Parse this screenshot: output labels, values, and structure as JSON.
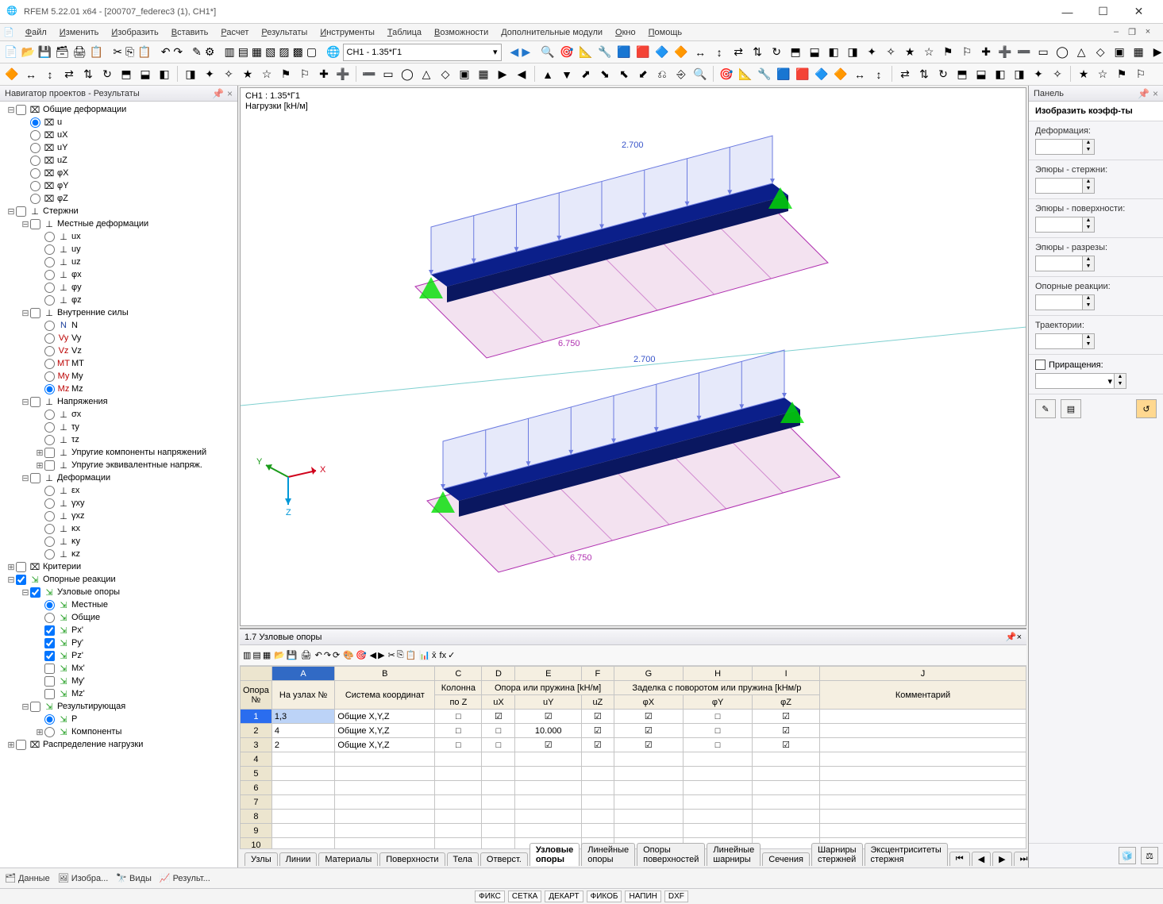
{
  "window": {
    "title": "RFEM 5.22.01 x64 - [200707_federec3 (1), CH1*]",
    "controls": {
      "min": "—",
      "max": "☐",
      "close": "✕"
    }
  },
  "menubar": [
    "Файл",
    "Изменить",
    "Изобразить",
    "Вставить",
    "Расчет",
    "Результаты",
    "Инструменты",
    "Таблица",
    "Возможности",
    "Дополнительные модули",
    "Окно",
    "Помощь"
  ],
  "load_case_selector": "CH1 - 1.35*Г1",
  "navigator": {
    "title": "Навигатор проектов - Результаты",
    "tree": [
      {
        "depth": 0,
        "tw": "−",
        "chk": false,
        "style": "chk",
        "ico": "⌧",
        "label": "Общие деформации"
      },
      {
        "depth": 1,
        "tw": "",
        "rad": true,
        "style": "rad",
        "ico": "⌧",
        "label": "u"
      },
      {
        "depth": 1,
        "tw": "",
        "rad": false,
        "style": "rad",
        "ico": "⌧",
        "label": "uX"
      },
      {
        "depth": 1,
        "tw": "",
        "rad": false,
        "style": "rad",
        "ico": "⌧",
        "label": "uY"
      },
      {
        "depth": 1,
        "tw": "",
        "rad": false,
        "style": "rad",
        "ico": "⌧",
        "label": "uZ"
      },
      {
        "depth": 1,
        "tw": "",
        "rad": false,
        "style": "rad",
        "ico": "⌧",
        "label": "φX"
      },
      {
        "depth": 1,
        "tw": "",
        "rad": false,
        "style": "rad",
        "ico": "⌧",
        "label": "φY"
      },
      {
        "depth": 1,
        "tw": "",
        "rad": false,
        "style": "rad",
        "ico": "⌧",
        "label": "φZ"
      },
      {
        "depth": 0,
        "tw": "−",
        "chk": false,
        "style": "chk",
        "ico": "⊥",
        "label": "Стержни"
      },
      {
        "depth": 1,
        "tw": "−",
        "chk": false,
        "style": "chk",
        "ico": "⊥",
        "label": "Местные деформации"
      },
      {
        "depth": 2,
        "tw": "",
        "rad": false,
        "style": "rad",
        "ico": "⊥",
        "label": "ux"
      },
      {
        "depth": 2,
        "tw": "",
        "rad": false,
        "style": "rad",
        "ico": "⊥",
        "label": "uy"
      },
      {
        "depth": 2,
        "tw": "",
        "rad": false,
        "style": "rad",
        "ico": "⊥",
        "label": "uz"
      },
      {
        "depth": 2,
        "tw": "",
        "rad": false,
        "style": "rad",
        "ico": "⊥",
        "label": "φx"
      },
      {
        "depth": 2,
        "tw": "",
        "rad": false,
        "style": "rad",
        "ico": "⊥",
        "label": "φy"
      },
      {
        "depth": 2,
        "tw": "",
        "rad": false,
        "style": "rad",
        "ico": "⊥",
        "label": "φz"
      },
      {
        "depth": 1,
        "tw": "−",
        "chk": false,
        "style": "chk",
        "ico": "⊥",
        "label": "Внутренние силы"
      },
      {
        "depth": 2,
        "tw": "",
        "rad": false,
        "style": "rad",
        "ico": "N",
        "label": "N",
        "icolor": "#1b3f9b"
      },
      {
        "depth": 2,
        "tw": "",
        "rad": false,
        "style": "rad",
        "ico": "Vy",
        "label": "Vy",
        "icolor": "#b00"
      },
      {
        "depth": 2,
        "tw": "",
        "rad": false,
        "style": "rad",
        "ico": "Vz",
        "label": "Vz",
        "icolor": "#b00"
      },
      {
        "depth": 2,
        "tw": "",
        "rad": false,
        "style": "rad",
        "ico": "MT",
        "label": "MT",
        "icolor": "#b00"
      },
      {
        "depth": 2,
        "tw": "",
        "rad": false,
        "style": "rad",
        "ico": "My",
        "label": "My",
        "icolor": "#b00"
      },
      {
        "depth": 2,
        "tw": "",
        "rad": true,
        "style": "rad",
        "ico": "Mz",
        "label": "Mz",
        "icolor": "#b00"
      },
      {
        "depth": 1,
        "tw": "−",
        "chk": false,
        "style": "chk",
        "ico": "⊥",
        "label": "Напряжения"
      },
      {
        "depth": 2,
        "tw": "",
        "rad": false,
        "style": "rad",
        "ico": "⊥",
        "label": "σx"
      },
      {
        "depth": 2,
        "tw": "",
        "rad": false,
        "style": "rad",
        "ico": "⊥",
        "label": "τy"
      },
      {
        "depth": 2,
        "tw": "",
        "rad": false,
        "style": "rad",
        "ico": "⊥",
        "label": "τz"
      },
      {
        "depth": 2,
        "tw": "+",
        "chk": false,
        "style": "chk",
        "ico": "⊥",
        "label": "Упругие компоненты напряжений"
      },
      {
        "depth": 2,
        "tw": "+",
        "chk": false,
        "style": "chk",
        "ico": "⊥",
        "label": "Упругие эквивалентные напряж."
      },
      {
        "depth": 1,
        "tw": "−",
        "chk": false,
        "style": "chk",
        "ico": "⊥",
        "label": "Деформации"
      },
      {
        "depth": 2,
        "tw": "",
        "rad": false,
        "style": "rad",
        "ico": "⊥",
        "label": "εx"
      },
      {
        "depth": 2,
        "tw": "",
        "rad": false,
        "style": "rad",
        "ico": "⊥",
        "label": "γxy"
      },
      {
        "depth": 2,
        "tw": "",
        "rad": false,
        "style": "rad",
        "ico": "⊥",
        "label": "γxz"
      },
      {
        "depth": 2,
        "tw": "",
        "rad": false,
        "style": "rad",
        "ico": "⊥",
        "label": "κx"
      },
      {
        "depth": 2,
        "tw": "",
        "rad": false,
        "style": "rad",
        "ico": "⊥",
        "label": "κy"
      },
      {
        "depth": 2,
        "tw": "",
        "rad": false,
        "style": "rad",
        "ico": "⊥",
        "label": "κz"
      },
      {
        "depth": 0,
        "tw": "+",
        "chk": false,
        "style": "chk",
        "ico": "⌧",
        "label": "Критерии"
      },
      {
        "depth": 0,
        "tw": "−",
        "chk": true,
        "style": "chk",
        "ico": "⇲",
        "label": "Опорные реакции",
        "icolor": "#1a9b1a"
      },
      {
        "depth": 1,
        "tw": "−",
        "chk": true,
        "style": "chk",
        "ico": "⇲",
        "label": "Узловые опоры",
        "icolor": "#1a9b1a"
      },
      {
        "depth": 2,
        "tw": "",
        "rad": true,
        "style": "rad",
        "ico": "⇲",
        "label": "Местные",
        "icolor": "#1a9b1a"
      },
      {
        "depth": 2,
        "tw": "",
        "rad": false,
        "style": "rad",
        "ico": "⇲",
        "label": "Общие",
        "icolor": "#1a9b1a"
      },
      {
        "depth": 2,
        "tw": "",
        "chk": true,
        "style": "chk",
        "ico": "⇲",
        "label": "Px'",
        "icolor": "#1a9b1a"
      },
      {
        "depth": 2,
        "tw": "",
        "chk": true,
        "style": "chk",
        "ico": "⇲",
        "label": "Py'",
        "icolor": "#1a9b1a"
      },
      {
        "depth": 2,
        "tw": "",
        "chk": true,
        "style": "chk",
        "ico": "⇲",
        "label": "Pz'",
        "icolor": "#1a9b1a"
      },
      {
        "depth": 2,
        "tw": "",
        "chk": false,
        "style": "chk",
        "ico": "⇲",
        "label": "Mx'",
        "icolor": "#1a9b1a"
      },
      {
        "depth": 2,
        "tw": "",
        "chk": false,
        "style": "chk",
        "ico": "⇲",
        "label": "My'",
        "icolor": "#1a9b1a"
      },
      {
        "depth": 2,
        "tw": "",
        "chk": false,
        "style": "chk",
        "ico": "⇲",
        "label": "Mz'",
        "icolor": "#1a9b1a"
      },
      {
        "depth": 1,
        "tw": "−",
        "chk": false,
        "style": "chk",
        "ico": "⇲",
        "label": "Результирующая",
        "icolor": "#1a9b1a"
      },
      {
        "depth": 2,
        "tw": "",
        "rad": true,
        "style": "rad",
        "ico": "⇲",
        "label": "P",
        "icolor": "#1a9b1a"
      },
      {
        "depth": 2,
        "tw": "+",
        "rad": false,
        "style": "rad",
        "ico": "⇲",
        "label": "Компоненты",
        "icolor": "#1a9b1a"
      },
      {
        "depth": 0,
        "tw": "+",
        "chk": false,
        "style": "chk",
        "ico": "⌧",
        "label": "Распределение нагрузки"
      }
    ]
  },
  "viewport": {
    "lc_line1": "CH1 : 1.35*Г1",
    "lc_line2": "Нагрузки [kH/м]",
    "load_label": "2.700",
    "distance_label": "6.750",
    "axis": {
      "x": "X",
      "y": "Y",
      "z": "Z",
      "xc": "#d0021b",
      "yc": "#1a9b1a",
      "zc": "#0098d8"
    },
    "colors": {
      "beam": "#0b1f8a",
      "surface": "#e2b7da",
      "surface_edge": "#b030b0",
      "support": "#00e000",
      "load_fill": "#c8cff5",
      "load_edge": "#6c7be0",
      "text": "#3753c9",
      "backline": "#7fd0d0"
    }
  },
  "panel": {
    "title": "Панель",
    "header": "Изобразить коэфф-ты",
    "sections": [
      "Деформация:",
      "Эпюры - стержни:",
      "Эпюры - поверхности:",
      "Эпюры - разрезы:",
      "Опорные реакции:",
      "Траектории:"
    ],
    "check_increments": "Приращения:"
  },
  "table": {
    "title": "1.7 Узловые опоры",
    "col_letters": [
      "A",
      "B",
      "C",
      "D",
      "E",
      "F",
      "G",
      "H",
      "I",
      "J"
    ],
    "header_row1": [
      "Опора\n№",
      "",
      "",
      "Колонна",
      "Опора или пружина [kH/м]",
      "",
      "",
      "Заделка с поворотом или пружина [kHм/р",
      "",
      ""
    ],
    "header_cells": {
      "r1": [
        "Опора",
        "",
        "",
        "Колонна",
        "Опора или пружина [kH/м]",
        "Заделка с поворотом или пружина [kHм/р",
        ""
      ],
      "r2": [
        "№",
        "На узлах №",
        "Система координат",
        "по Z",
        "uX",
        "uY",
        "uZ",
        "φX",
        "φY",
        "φZ",
        "Комментарий"
      ]
    },
    "rows": [
      {
        "n": "1",
        "nodes": "1,3",
        "cs": "Общие X,Y,Z",
        "colz": "□",
        "ux": "☑",
        "uy": "☑",
        "uz": "☑",
        "px": "☑",
        "py": "□",
        "pz": "☑",
        "comment": ""
      },
      {
        "n": "2",
        "nodes": "4",
        "cs": "Общие X,Y,Z",
        "colz": "□",
        "ux": "□",
        "uy": "10.000",
        "uz": "☑",
        "px": "☑",
        "py": "□",
        "pz": "☑",
        "comment": ""
      },
      {
        "n": "3",
        "nodes": "2",
        "cs": "Общие X,Y,Z",
        "colz": "□",
        "ux": "□",
        "uy": "☑",
        "uz": "☑",
        "px": "☑",
        "py": "□",
        "pz": "☑",
        "comment": ""
      }
    ],
    "empty_rows": [
      "4",
      "5",
      "6",
      "7",
      "8",
      "9",
      "10"
    ],
    "bottom_tabs": [
      "Узлы",
      "Линии",
      "Материалы",
      "Поверхности",
      "Тела",
      "Отверст.",
      "Узловые опоры",
      "Линейные опоры",
      "Опоры поверхностей",
      "Линейные шарниры",
      "Сечения",
      "Шарниры стержней",
      "Эксцентриситеты стержня"
    ],
    "active_tab": 6
  },
  "footer_tabs": [
    "Данные",
    "Изобра...",
    "Виды",
    "Результ..."
  ],
  "status_boxes": [
    "ФИКС",
    "СЕТКА",
    "ДЕКАРТ",
    "ФИКОБ",
    "НАПИН",
    "DXF"
  ]
}
